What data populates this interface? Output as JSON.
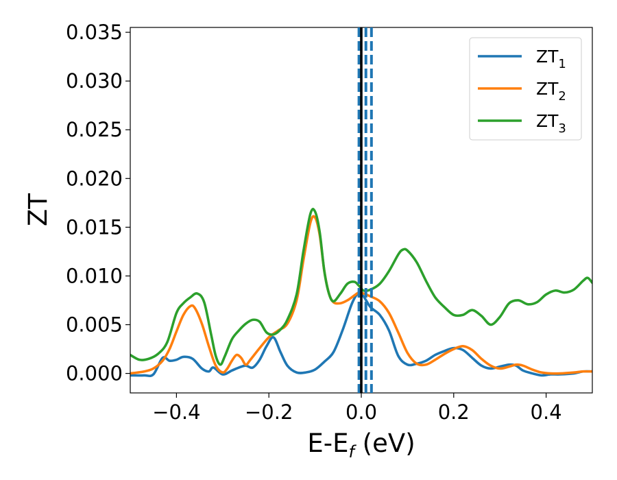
{
  "chart_data": {
    "type": "line",
    "xlabel": "E-E",
    "xlabel_sub": "f",
    "xlabel_unit": " (eV)",
    "ylabel": "ZT",
    "xlim": [
      -0.5,
      0.5
    ],
    "ylim": [
      -0.002,
      0.0355
    ],
    "xticks": [
      -0.4,
      -0.2,
      0.0,
      0.2,
      0.4
    ],
    "xtick_labels": [
      "−0.4",
      "−0.2",
      "0.0",
      "0.2",
      "0.4"
    ],
    "yticks": [
      0.0,
      0.005,
      0.01,
      0.015,
      0.02,
      0.025,
      0.03,
      0.035
    ],
    "ytick_labels": [
      "0.000",
      "0.005",
      "0.010",
      "0.015",
      "0.020",
      "0.025",
      "0.030",
      "0.035"
    ],
    "grid": false,
    "legend_position": "top-right",
    "vertical_lines": [
      {
        "x": 0.0,
        "color": "#000000",
        "style": "solid"
      },
      {
        "x": -0.005,
        "color": "#1f77b4",
        "style": "dashed"
      },
      {
        "x": 0.01,
        "color": "#1f77b4",
        "style": "dashed"
      },
      {
        "x": 0.022,
        "color": "#1f77b4",
        "style": "dashed"
      }
    ],
    "series": [
      {
        "name": "ZT",
        "name_sub": "1",
        "color": "#1f77b4",
        "x": [
          -0.5,
          -0.47,
          -0.45,
          -0.43,
          -0.415,
          -0.4,
          -0.385,
          -0.365,
          -0.345,
          -0.33,
          -0.32,
          -0.3,
          -0.28,
          -0.265,
          -0.25,
          -0.235,
          -0.22,
          -0.205,
          -0.19,
          -0.175,
          -0.16,
          -0.14,
          -0.12,
          -0.1,
          -0.08,
          -0.06,
          -0.04,
          -0.02,
          -0.005,
          0.005,
          0.02,
          0.04,
          0.06,
          0.08,
          0.1,
          0.12,
          0.14,
          0.16,
          0.18,
          0.2,
          0.22,
          0.24,
          0.26,
          0.28,
          0.3,
          0.32,
          0.335,
          0.35,
          0.37,
          0.39,
          0.41,
          0.43,
          0.46,
          0.48,
          0.5
        ],
        "y": [
          -0.0002,
          -0.0002,
          -0.0001,
          0.0016,
          0.0013,
          0.0014,
          0.0017,
          0.0015,
          0.0005,
          0.0002,
          0.0006,
          -0.0001,
          0.0003,
          0.0006,
          0.0008,
          0.0006,
          0.0014,
          0.0028,
          0.0037,
          0.0022,
          0.0008,
          0.0001,
          0.0001,
          0.0004,
          0.0012,
          0.0022,
          0.0045,
          0.0072,
          0.0083,
          0.0079,
          0.0068,
          0.006,
          0.0044,
          0.0018,
          0.0009,
          0.001,
          0.0013,
          0.0019,
          0.0023,
          0.0026,
          0.0024,
          0.0016,
          0.0008,
          0.0005,
          0.0007,
          0.0009,
          0.0008,
          0.0003,
          0.0,
          -0.0002,
          -0.0001,
          -0.0001,
          0.0,
          0.0002,
          0.0002
        ]
      },
      {
        "name": "ZT",
        "name_sub": "2",
        "color": "#ff7f0e",
        "x": [
          -0.5,
          -0.47,
          -0.45,
          -0.43,
          -0.415,
          -0.4,
          -0.385,
          -0.37,
          -0.36,
          -0.345,
          -0.33,
          -0.315,
          -0.3,
          -0.29,
          -0.28,
          -0.27,
          -0.26,
          -0.25,
          -0.24,
          -0.22,
          -0.2,
          -0.18,
          -0.16,
          -0.14,
          -0.125,
          -0.11,
          -0.1,
          -0.09,
          -0.08,
          -0.07,
          -0.06,
          -0.045,
          -0.03,
          -0.015,
          -0.005,
          0.005,
          0.02,
          0.04,
          0.06,
          0.08,
          0.1,
          0.12,
          0.14,
          0.16,
          0.18,
          0.2,
          0.22,
          0.24,
          0.26,
          0.28,
          0.3,
          0.32,
          0.335,
          0.35,
          0.37,
          0.39,
          0.41,
          0.43,
          0.46,
          0.48,
          0.5
        ],
        "y": [
          0.0,
          0.0002,
          0.0005,
          0.0013,
          0.0025,
          0.0043,
          0.006,
          0.0069,
          0.0067,
          0.0051,
          0.0028,
          0.0008,
          0.0001,
          0.0005,
          0.0013,
          0.0019,
          0.0016,
          0.0009,
          0.0014,
          0.0026,
          0.0037,
          0.0044,
          0.0051,
          0.0075,
          0.0117,
          0.0155,
          0.016,
          0.0142,
          0.0105,
          0.0082,
          0.0073,
          0.0072,
          0.0075,
          0.008,
          0.0083,
          0.0082,
          0.0079,
          0.0074,
          0.0062,
          0.0042,
          0.0021,
          0.001,
          0.0009,
          0.0014,
          0.002,
          0.0025,
          0.0028,
          0.0024,
          0.0015,
          0.0008,
          0.0005,
          0.0007,
          0.0009,
          0.0008,
          0.0004,
          0.0001,
          0.0,
          0.0,
          0.0001,
          0.0002,
          0.0002
        ]
      },
      {
        "name": "ZT",
        "name_sub": "3",
        "color": "#2ca02c",
        "x": [
          -0.5,
          -0.48,
          -0.46,
          -0.44,
          -0.42,
          -0.4,
          -0.385,
          -0.37,
          -0.355,
          -0.34,
          -0.325,
          -0.315,
          -0.305,
          -0.295,
          -0.28,
          -0.265,
          -0.25,
          -0.235,
          -0.22,
          -0.205,
          -0.19,
          -0.175,
          -0.16,
          -0.14,
          -0.125,
          -0.11,
          -0.1,
          -0.09,
          -0.08,
          -0.07,
          -0.06,
          -0.045,
          -0.03,
          -0.015,
          -0.005,
          0.005,
          0.02,
          0.04,
          0.06,
          0.08,
          0.09,
          0.1,
          0.12,
          0.14,
          0.16,
          0.18,
          0.2,
          0.22,
          0.24,
          0.26,
          0.28,
          0.3,
          0.32,
          0.34,
          0.36,
          0.38,
          0.4,
          0.42,
          0.44,
          0.46,
          0.48,
          0.49,
          0.5
        ],
        "y": [
          0.0019,
          0.0014,
          0.0015,
          0.002,
          0.0032,
          0.0062,
          0.0072,
          0.0078,
          0.0082,
          0.0073,
          0.004,
          0.0018,
          0.0009,
          0.0018,
          0.0035,
          0.0044,
          0.0051,
          0.0055,
          0.0053,
          0.0042,
          0.004,
          0.0045,
          0.0055,
          0.0081,
          0.0126,
          0.0164,
          0.0166,
          0.0145,
          0.0105,
          0.0082,
          0.0074,
          0.0082,
          0.0092,
          0.0094,
          0.009,
          0.0085,
          0.0086,
          0.0092,
          0.0105,
          0.0122,
          0.0127,
          0.0126,
          0.0114,
          0.0095,
          0.0078,
          0.0068,
          0.006,
          0.006,
          0.0065,
          0.0059,
          0.005,
          0.0058,
          0.0072,
          0.0075,
          0.0071,
          0.0073,
          0.0081,
          0.0085,
          0.0083,
          0.0086,
          0.0095,
          0.0098,
          0.0093
        ]
      }
    ]
  }
}
